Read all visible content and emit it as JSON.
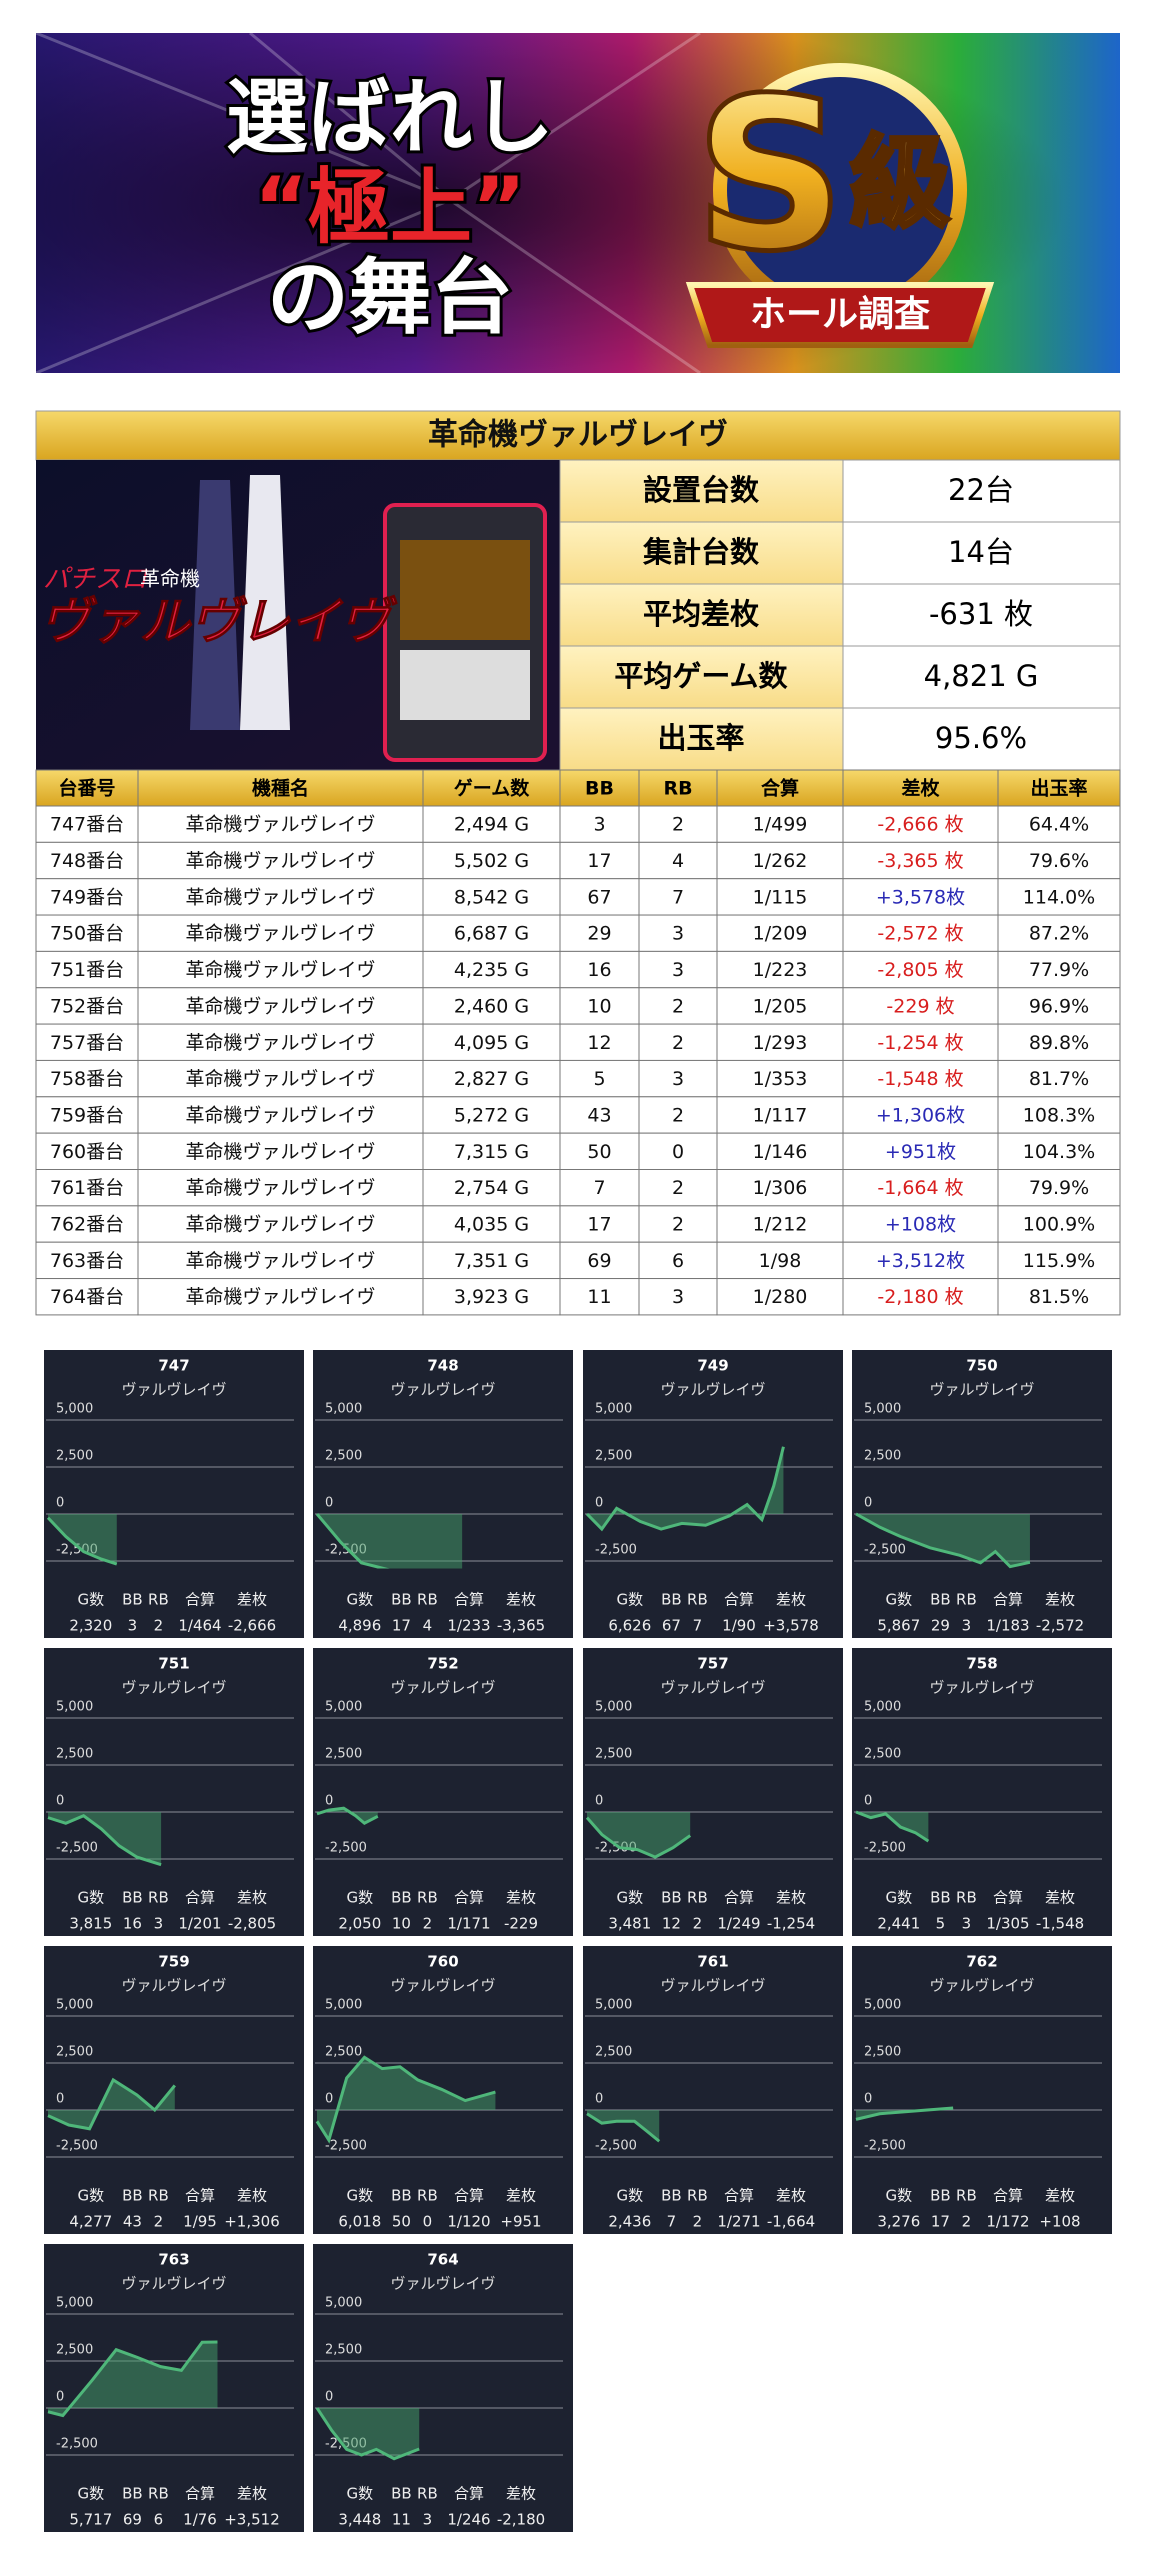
{
  "banner": {
    "lines": [
      "選ばれし",
      "“極上”",
      "の舞台"
    ],
    "badge": "S",
    "badge2": "級",
    "ribbon": "ホール調査"
  },
  "machine": {
    "title": "革命機ヴァルヴレイヴ",
    "logo_small": "パチスロ",
    "logo_tag": "革命機",
    "logo": "ヴァルヴレイヴ"
  },
  "summary": [
    [
      "設置台数",
      "22台"
    ],
    [
      "集計台数",
      "14台"
    ],
    [
      "平均差枚",
      "-631 枚"
    ],
    [
      "平均ゲーム数",
      "4,821 G"
    ],
    [
      "出玉率",
      "95.6%"
    ]
  ],
  "table": {
    "header": [
      "台番号",
      "機種名",
      "ゲーム数",
      "BB",
      "RB",
      "合算",
      "差枚",
      "出玉率"
    ],
    "rows": [
      {
        "cells": [
          "747番台",
          "革命機ヴァルヴレイヴ",
          "2,494 G",
          "3",
          "2",
          "1/499",
          "-2,666 枚",
          "64.4%"
        ],
        "diff_color": "#d81e1e"
      },
      {
        "cells": [
          "748番台",
          "革命機ヴァルヴレイヴ",
          "5,502 G",
          "17",
          "4",
          "1/262",
          "-3,365 枚",
          "79.6%"
        ],
        "diff_color": "#d81e1e"
      },
      {
        "cells": [
          "749番台",
          "革命機ヴァルヴレイヴ",
          "8,542 G",
          "67",
          "7",
          "1/115",
          "+3,578枚",
          "114.0%"
        ],
        "diff_color": "#2a2ab5"
      },
      {
        "cells": [
          "750番台",
          "革命機ヴァルヴレイヴ",
          "6,687 G",
          "29",
          "3",
          "1/209",
          "-2,572 枚",
          "87.2%"
        ],
        "diff_color": "#d81e1e"
      },
      {
        "cells": [
          "751番台",
          "革命機ヴァルヴレイヴ",
          "4,235 G",
          "16",
          "3",
          "1/223",
          "-2,805 枚",
          "77.9%"
        ],
        "diff_color": "#d81e1e"
      },
      {
        "cells": [
          "752番台",
          "革命機ヴァルヴレイヴ",
          "2,460 G",
          "10",
          "2",
          "1/205",
          "-229 枚",
          "96.9%"
        ],
        "diff_color": "#d81e1e"
      },
      {
        "cells": [
          "757番台",
          "革命機ヴァルヴレイヴ",
          "4,095 G",
          "12",
          "2",
          "1/293",
          "-1,254 枚",
          "89.8%"
        ],
        "diff_color": "#d81e1e"
      },
      {
        "cells": [
          "758番台",
          "革命機ヴァルヴレイヴ",
          "2,827 G",
          "5",
          "3",
          "1/353",
          "-1,548 枚",
          "81.7%"
        ],
        "diff_color": "#d81e1e"
      },
      {
        "cells": [
          "759番台",
          "革命機ヴァルヴレイヴ",
          "5,272 G",
          "43",
          "2",
          "1/117",
          "+1,306枚",
          "108.3%"
        ],
        "diff_color": "#2a2ab5"
      },
      {
        "cells": [
          "760番台",
          "革命機ヴァルヴレイヴ",
          "7,315 G",
          "50",
          "0",
          "1/146",
          "+951枚",
          "104.3%"
        ],
        "diff_color": "#2a2ab5"
      },
      {
        "cells": [
          "761番台",
          "革命機ヴァルヴレイヴ",
          "2,754 G",
          "7",
          "2",
          "1/306",
          "-1,664 枚",
          "79.9%"
        ],
        "diff_color": "#d81e1e"
      },
      {
        "cells": [
          "762番台",
          "革命機ヴァルヴレイヴ",
          "4,035 G",
          "17",
          "2",
          "1/212",
          "+108枚",
          "100.9%"
        ],
        "diff_color": "#2a2ab5"
      },
      {
        "cells": [
          "763番台",
          "革命機ヴァルヴレイヴ",
          "7,351 G",
          "69",
          "6",
          "1/98",
          "+3,512枚",
          "115.9%"
        ],
        "diff_color": "#2a2ab5"
      },
      {
        "cells": [
          "764番台",
          "革命機ヴァルヴレイヴ",
          "3,923 G",
          "11",
          "3",
          "1/280",
          "-2,180 枚",
          "81.5%"
        ],
        "diff_color": "#d81e1e"
      }
    ]
  },
  "chart_common": {
    "type": "line",
    "ylim": [
      -2900,
      5000
    ],
    "xlim": [
      0,
      8500
    ],
    "yticks": [
      {
        "value": 5000,
        "label": "5,000"
      },
      {
        "value": 2500,
        "label": "2,500"
      },
      0,
      {
        "value": -2500,
        "label": "-2,500"
      }
    ],
    "color": "#4fb77a",
    "fill": "rgba(70,160,105,0.5)",
    "grid": true,
    "footer_labels": [
      "G数",
      "BB",
      "RB",
      "合算",
      "差枚"
    ]
  },
  "charts": [
    {
      "title": "747",
      "subtitle": "ヴァルヴレイヴ",
      "x": [
        0,
        600,
        1200,
        1800,
        2320
      ],
      "values": [
        -200,
        -1200,
        -2000,
        -2400,
        -2666
      ],
      "footer_values": [
        "2,320",
        "3",
        "2",
        "1/464",
        "-2,666"
      ]
    },
    {
      "title": "748",
      "subtitle": "ヴァルヴレイヴ",
      "x": [
        0,
        800,
        1500,
        2500,
        3500,
        4896
      ],
      "values": [
        0,
        -1500,
        -2600,
        -3000,
        -3200,
        -3365
      ],
      "footer_values": [
        "4,896",
        "17",
        "4",
        "1/233",
        "-3,365"
      ]
    },
    {
      "title": "749",
      "subtitle": "ヴァルヴレイヴ",
      "x": [
        0,
        500,
        1000,
        1800,
        2500,
        3200,
        4000,
        4800,
        5400,
        5900,
        6300,
        6626
      ],
      "values": [
        0,
        -800,
        300,
        -400,
        -800,
        -500,
        -600,
        -100,
        500,
        -300,
        1500,
        3578
      ],
      "footer_values": [
        "6,626",
        "67",
        "7",
        "1/90",
        "+3,578"
      ]
    },
    {
      "title": "750",
      "subtitle": "ヴァルヴレイヴ",
      "x": [
        0,
        800,
        1500,
        2500,
        3500,
        4200,
        4700,
        5200,
        5867
      ],
      "values": [
        0,
        -700,
        -1200,
        -1800,
        -2200,
        -2600,
        -2000,
        -2800,
        -2572
      ],
      "footer_values": [
        "5,867",
        "29",
        "3",
        "1/183",
        "-2,572"
      ]
    },
    {
      "title": "751",
      "subtitle": "ヴァルヴレイヴ",
      "x": [
        0,
        600,
        1200,
        1800,
        2400,
        3000,
        3815
      ],
      "values": [
        -300,
        -600,
        -200,
        -900,
        -1800,
        -2400,
        -2805
      ],
      "footer_values": [
        "3,815",
        "16",
        "3",
        "1/201",
        "-2,805"
      ]
    },
    {
      "title": "752",
      "subtitle": "ヴァルヴレイヴ",
      "x": [
        0,
        400,
        900,
        1300,
        1600,
        2050
      ],
      "values": [
        -100,
        100,
        200,
        -200,
        -600,
        -229
      ],
      "footer_values": [
        "2,050",
        "10",
        "2",
        "1/171",
        "-229"
      ]
    },
    {
      "title": "757",
      "subtitle": "ヴァルヴレイヴ",
      "x": [
        0,
        500,
        1100,
        1700,
        2300,
        2900,
        3481
      ],
      "values": [
        -300,
        -1200,
        -1900,
        -2000,
        -2400,
        -1900,
        -1254
      ],
      "footer_values": [
        "3,481",
        "12",
        "2",
        "1/249",
        "-1,254"
      ]
    },
    {
      "title": "758",
      "subtitle": "ヴァルヴレイヴ",
      "x": [
        0,
        500,
        1000,
        1500,
        2000,
        2441
      ],
      "values": [
        0,
        -300,
        -100,
        -800,
        -1100,
        -1548
      ],
      "footer_values": [
        "2,441",
        "5",
        "3",
        "1/305",
        "-1,548"
      ]
    },
    {
      "title": "759",
      "subtitle": "ヴァルヴレイヴ",
      "x": [
        0,
        700,
        1400,
        2200,
        3000,
        3600,
        4277
      ],
      "values": [
        -300,
        -800,
        -1000,
        1600,
        800,
        0,
        1306
      ],
      "footer_values": [
        "4,277",
        "43",
        "2",
        "1/95",
        "+1,306"
      ]
    },
    {
      "title": "760",
      "subtitle": "ヴァルヴレイヴ",
      "x": [
        0,
        400,
        1000,
        1600,
        2200,
        2800,
        3400,
        4200,
        5000,
        6018
      ],
      "values": [
        -600,
        -1600,
        1700,
        2800,
        2200,
        2300,
        1600,
        1100,
        500,
        951
      ],
      "footer_values": [
        "6,018",
        "50",
        "0",
        "1/120",
        "+951"
      ]
    },
    {
      "title": "761",
      "subtitle": "ヴァルヴレイヴ",
      "x": [
        0,
        500,
        1000,
        1600,
        2000,
        2436
      ],
      "values": [
        -200,
        -700,
        -600,
        -600,
        -1100,
        -1664
      ],
      "footer_values": [
        "2,436",
        "7",
        "2",
        "1/271",
        "-1,664"
      ]
    },
    {
      "title": "762",
      "subtitle": "ヴァルヴレイヴ",
      "x": [
        0,
        800,
        1600,
        2400,
        3276
      ],
      "values": [
        -500,
        -200,
        -100,
        0,
        108
      ],
      "footer_values": [
        "3,276",
        "17",
        "2",
        "1/172",
        "+108"
      ]
    },
    {
      "title": "763",
      "subtitle": "ヴァルヴレイヴ",
      "x": [
        0,
        500,
        1500,
        2300,
        3000,
        3800,
        4500,
        5200,
        5717
      ],
      "values": [
        -200,
        -400,
        1500,
        3100,
        2700,
        2200,
        2000,
        3500,
        3512
      ],
      "footer_values": [
        "5,717",
        "69",
        "6",
        "1/76",
        "+3,512"
      ]
    },
    {
      "title": "764",
      "subtitle": "ヴァルヴレイヴ",
      "x": [
        0,
        500,
        1000,
        1500,
        2000,
        2600,
        3448
      ],
      "values": [
        0,
        -1200,
        -2200,
        -2500,
        -2200,
        -2700,
        -2180
      ],
      "footer_values": [
        "3,448",
        "11",
        "3",
        "1/246",
        "-2,180"
      ]
    }
  ]
}
